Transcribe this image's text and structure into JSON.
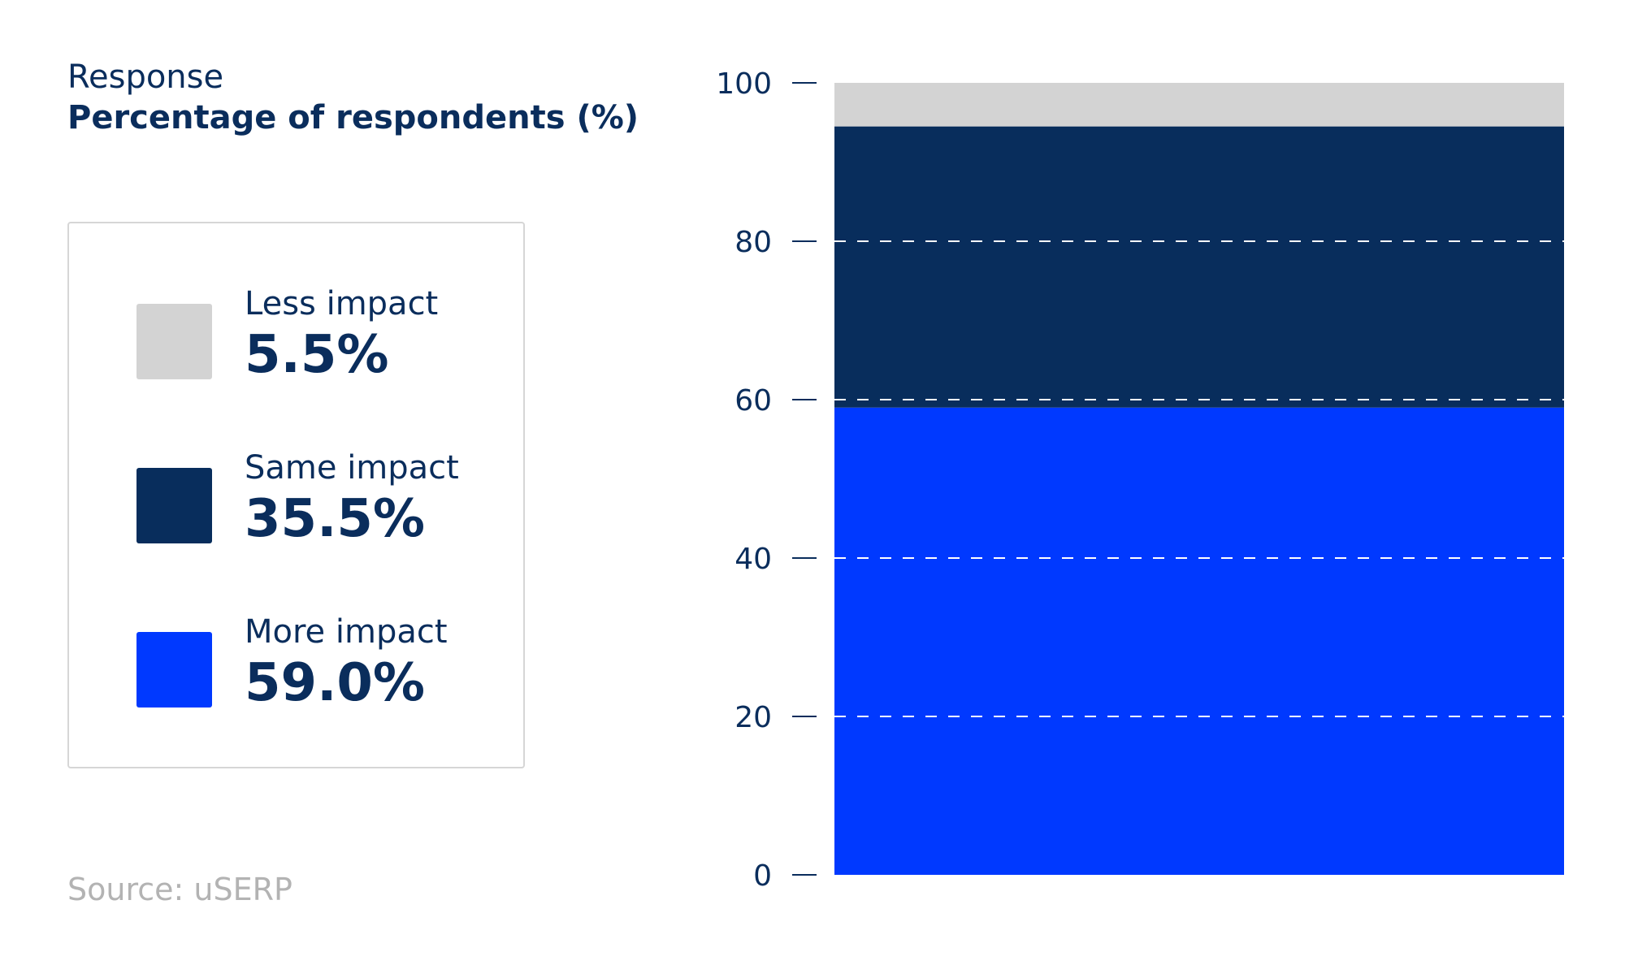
{
  "header": {
    "kicker": "Response",
    "subtitle": "Percentage of respondents (%)"
  },
  "source": "Source: uSERP",
  "chart_data": {
    "type": "bar",
    "stacked": true,
    "categories": [
      ""
    ],
    "series": [
      {
        "name": "More impact",
        "values": [
          59.0
        ],
        "label": "59.0%",
        "color": "#0039ff"
      },
      {
        "name": "Same impact",
        "values": [
          35.5
        ],
        "label": "35.5%",
        "color": "#082d5c"
      },
      {
        "name": "Less impact",
        "values": [
          5.5
        ],
        "label": "5.5%",
        "color": "#d3d3d3"
      }
    ],
    "title": "Response",
    "ylabel": "Percentage of respondents (%)",
    "xlabel": "",
    "ylim": [
      0,
      100
    ],
    "yticks": [
      0,
      20,
      40,
      60,
      80,
      100
    ],
    "grid": true,
    "legend_position": "left"
  },
  "legend": {
    "items": [
      {
        "label": "Less impact",
        "value": "5.5%",
        "color": "#d3d3d3"
      },
      {
        "label": "Same impact",
        "value": "35.5%",
        "color": "#082d5c"
      },
      {
        "label": "More impact",
        "value": "59.0%",
        "color": "#0039ff"
      }
    ]
  }
}
